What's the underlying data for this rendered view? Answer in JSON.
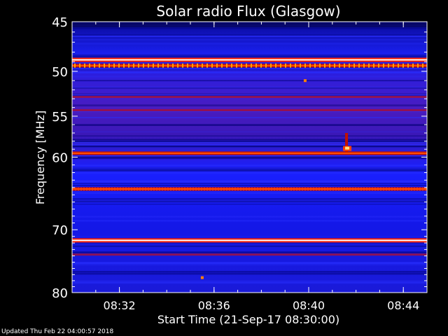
{
  "chart_data": {
    "type": "heatmap",
    "title": "Solar radio Flux (Glasgow)",
    "xlabel": "Start Time (21-Sep-17 08:30:00)",
    "ylabel": "Frequency [MHz]",
    "x_unit": "time",
    "x_start": "08:30",
    "x_end": "08:45",
    "xlim_minutes": [
      0,
      15
    ],
    "x_ticks": [
      {
        "label": "08:32",
        "minute": 2
      },
      {
        "label": "08:36",
        "minute": 6
      },
      {
        "label": "08:40",
        "minute": 10
      },
      {
        "label": "08:44",
        "minute": 14
      }
    ],
    "ylim": [
      45,
      80
    ],
    "y_inverted": true,
    "y_log_scale": true,
    "y_ticks": [
      45,
      50,
      55,
      60,
      70,
      80
    ],
    "grid": false,
    "legend": "none",
    "colormap": [
      "#00008b",
      "#1010ff",
      "#6a2bb0",
      "#b01010",
      "#ff3000",
      "#ffd060",
      "#ffffff"
    ],
    "background_level": "blue",
    "persistent_bands_mhz": [
      {
        "freq": 48.8,
        "intensity": "saturated"
      },
      {
        "freq": 49.4,
        "intensity": "strong"
      },
      {
        "freq": 52.8,
        "intensity": "moderate"
      },
      {
        "freq": 54.3,
        "intensity": "moderate"
      },
      {
        "freq": 59.5,
        "intensity": "strong"
      },
      {
        "freq": 64.2,
        "intensity": "strong"
      },
      {
        "freq": 71.6,
        "intensity": "saturated"
      },
      {
        "freq": 73.8,
        "intensity": "moderate"
      }
    ],
    "burst_events": [
      {
        "minute": 11.6,
        "freq_low": 57.0,
        "freq_high": 59.3,
        "intensity": "saturated"
      },
      {
        "minute": 9.85,
        "freq": 51.0,
        "intensity": "moderate"
      },
      {
        "minute": 5.5,
        "freq": 77.5,
        "intensity": "moderate"
      }
    ]
  },
  "footer": "Updated Thu Feb 22 04:00:57 2018"
}
